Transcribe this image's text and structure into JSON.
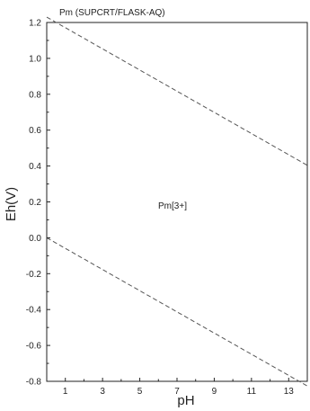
{
  "chart_data": {
    "type": "line",
    "title": "Pm (SUPCRT/FLASK-AQ)",
    "xlabel": "pH",
    "ylabel": "Eh(V)",
    "xlim": [
      0,
      14
    ],
    "ylim": [
      -0.8,
      1.2
    ],
    "xticks": [
      1,
      3,
      5,
      7,
      9,
      11,
      13
    ],
    "yticks": [
      -0.8,
      -0.6,
      -0.4,
      -0.2,
      0.0,
      0.2,
      0.4,
      0.6,
      0.8,
      1.0,
      1.2
    ],
    "ytick_labels": [
      "-0.8",
      "-0.6",
      "-0.4",
      "-0.2",
      "0.0",
      "0.2",
      "0.4",
      "0.6",
      "0.8",
      "1.0",
      "1.2"
    ],
    "xtick_labels": [
      "1",
      "3",
      "5",
      "7",
      "9",
      "11",
      "13"
    ],
    "grid": false,
    "series": [
      {
        "x": [
          0,
          14
        ],
        "values": [
          1.23,
          0.404
        ],
        "style": "dashed"
      },
      {
        "x": [
          0,
          14
        ],
        "values": [
          0.0,
          -0.826
        ],
        "style": "dashed"
      }
    ],
    "annotations": [
      {
        "text": "Pm[3+]",
        "x": 7.5,
        "y": 0.2
      }
    ],
    "colors": {
      "line": "#555555",
      "axis": "#222222"
    }
  }
}
